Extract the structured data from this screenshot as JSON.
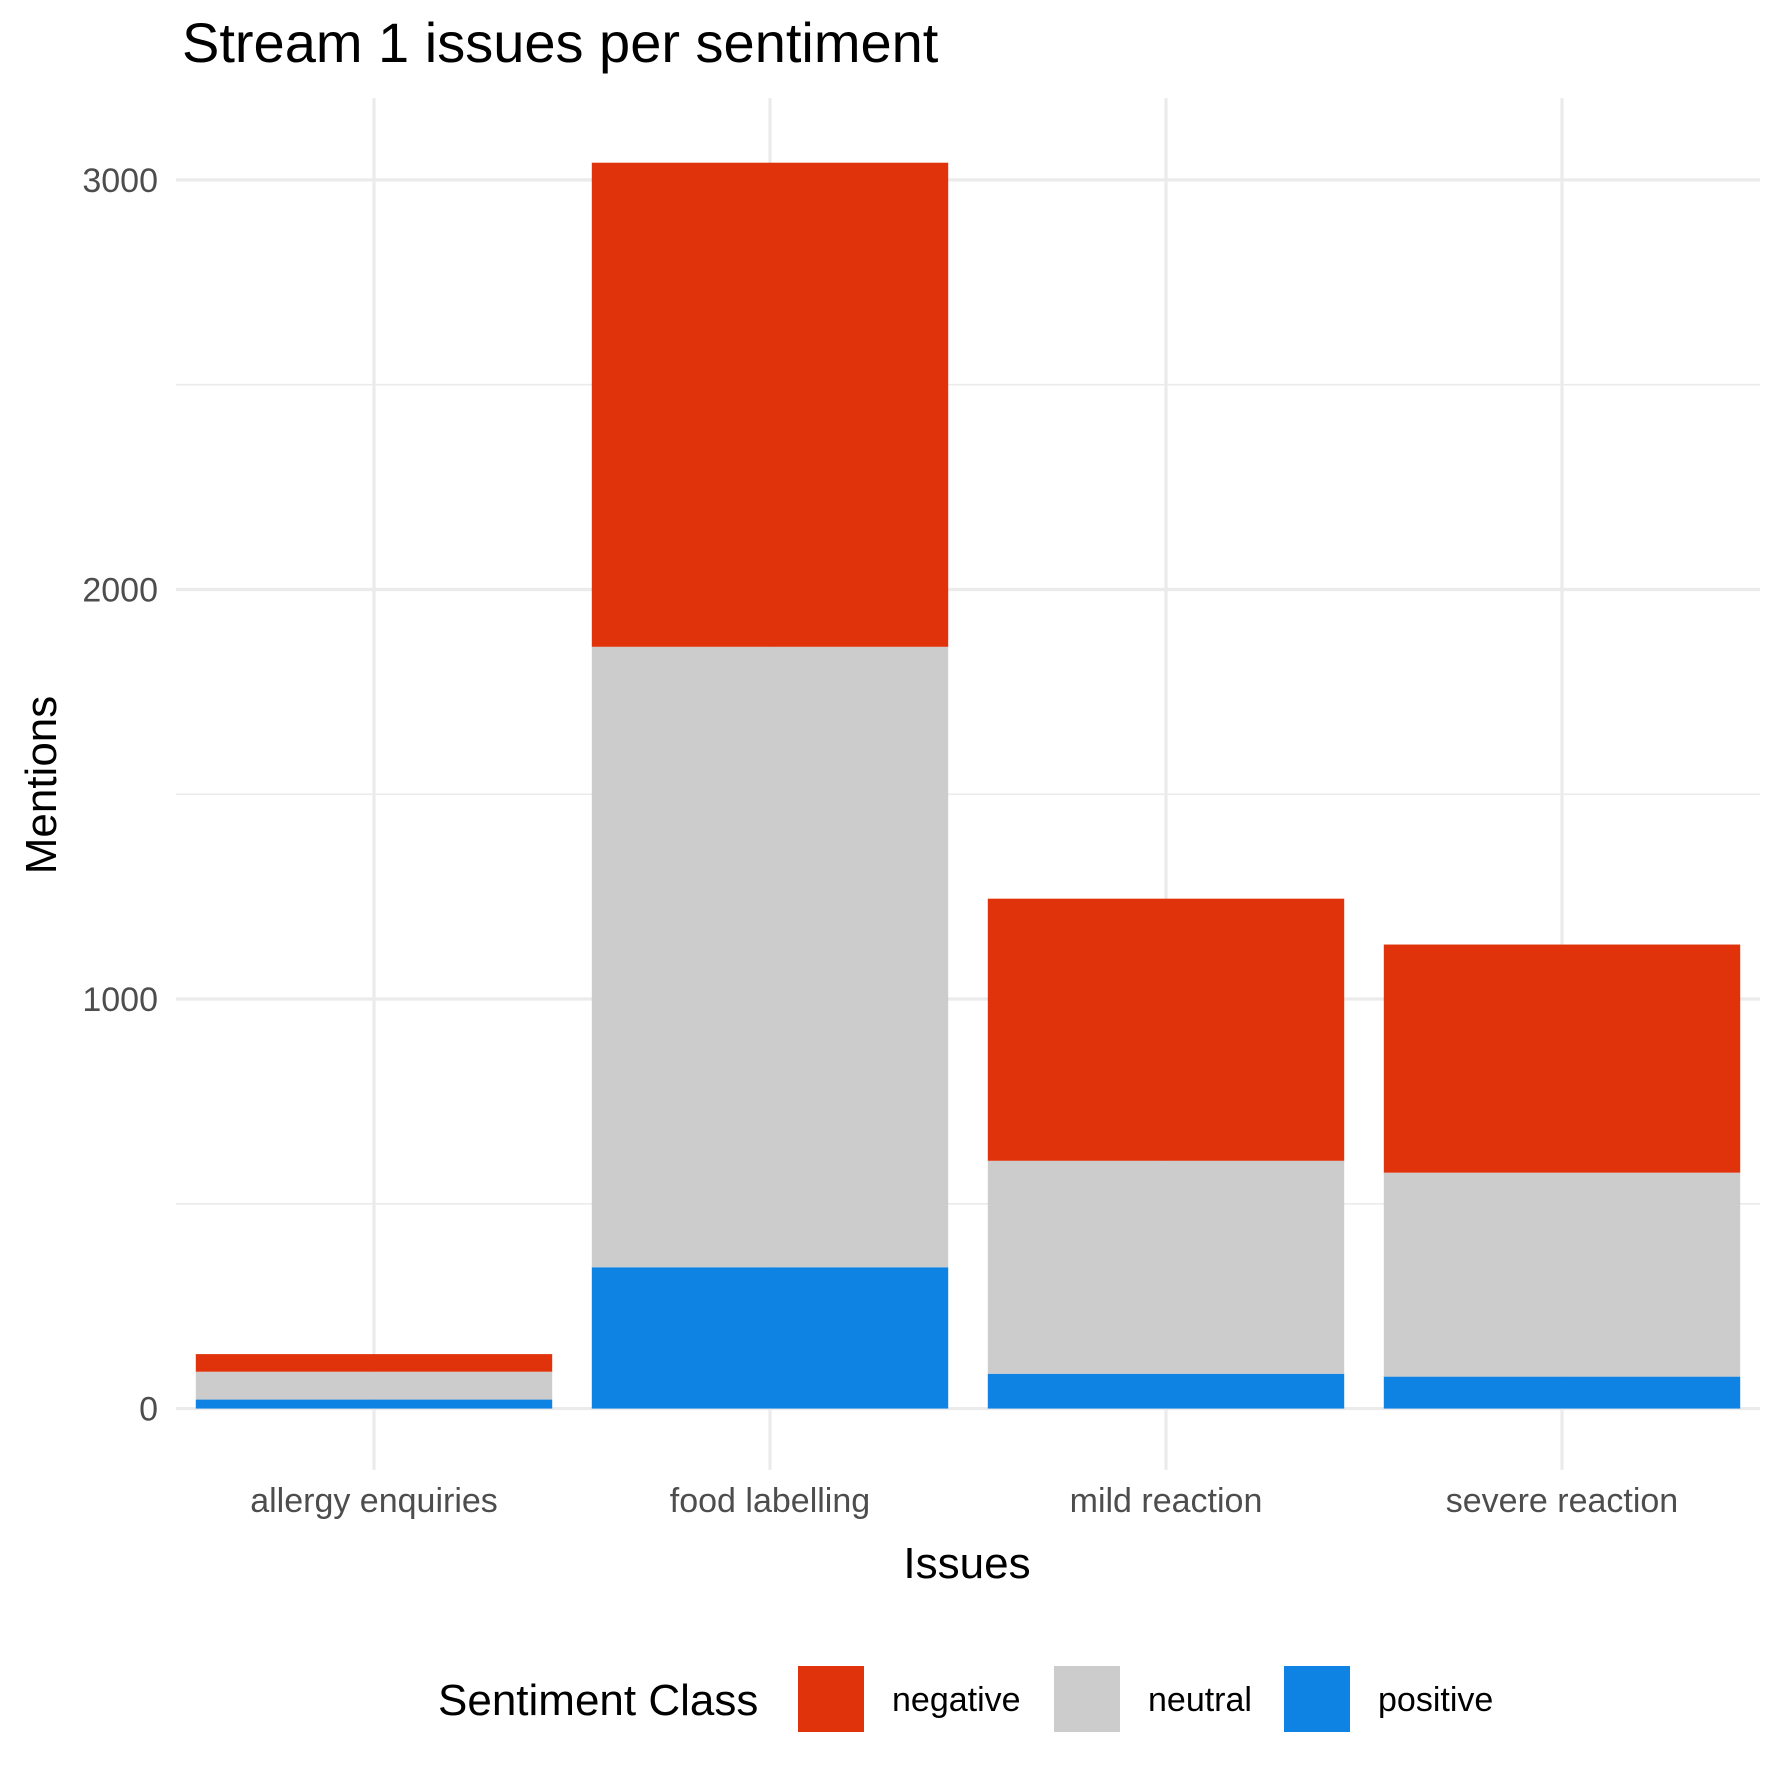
{
  "chart_data": {
    "type": "bar",
    "stacked": true,
    "title": "Stream 1 issues per sentiment",
    "xlabel": "Issues",
    "ylabel": "Mentions",
    "categories": [
      "allergy enquiries",
      "food labelling",
      "mild reaction",
      "severe reaction"
    ],
    "series": [
      {
        "name": "positive",
        "color": "#0f83e4",
        "values": [
          22,
          345,
          85,
          78
        ]
      },
      {
        "name": "neutral",
        "color": "#cccccc",
        "values": [
          68,
          1515,
          520,
          498
        ]
      },
      {
        "name": "negative",
        "color": "#e0330c",
        "values": [
          43,
          1182,
          640,
          557
        ]
      }
    ],
    "ylim": [
      -150,
      3200
    ],
    "yticks": [
      0,
      1000,
      2000,
      3000
    ],
    "grid": true,
    "legend": {
      "title": "Sentiment Class",
      "position": "bottom",
      "order": [
        "negative",
        "neutral",
        "positive"
      ]
    }
  }
}
